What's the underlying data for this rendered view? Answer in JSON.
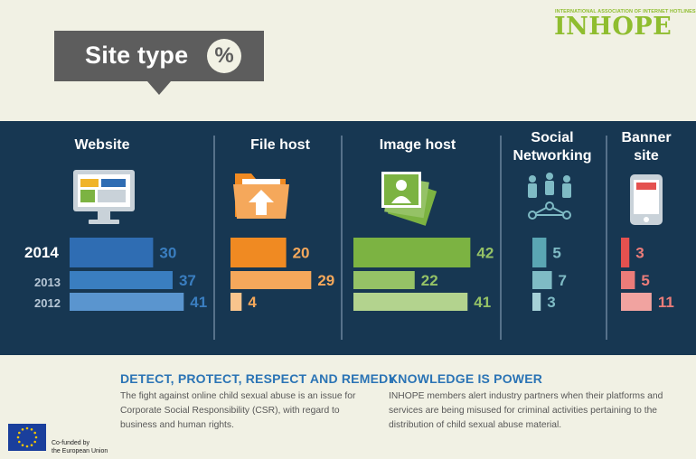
{
  "header": {
    "title": "Site type",
    "badge": "%",
    "logo_small": "INTERNATIONAL ASSOCIATION OF INTERNET HOTLINES",
    "logo": "INHOPE"
  },
  "chart_data": {
    "type": "bar",
    "orientation": "horizontal",
    "categories": [
      "Website",
      "File host",
      "Image host",
      "Social Networking",
      "Banner site"
    ],
    "years": [
      "2014",
      "2013",
      "2012"
    ],
    "series": [
      {
        "name": "2014",
        "values": [
          30,
          20,
          42,
          5,
          3
        ]
      },
      {
        "name": "2013",
        "values": [
          37,
          29,
          22,
          7,
          5
        ]
      },
      {
        "name": "2012",
        "values": [
          41,
          4,
          41,
          3,
          11
        ]
      }
    ],
    "colors": {
      "Website": [
        "#2f6db3",
        "#3a7ec0",
        "#5a95cf"
      ],
      "File host": [
        "#f08a22",
        "#f5a85b",
        "#f8c48d"
      ],
      "Image host": [
        "#7cb342",
        "#95c266",
        "#b3d38e"
      ],
      "Social Networking": [
        "#5aa6b3",
        "#7fbbc5",
        "#a5d0d7"
      ],
      "Banner site": [
        "#e4514f",
        "#eb7c79",
        "#f1a3a0"
      ]
    },
    "value_label_colors": [
      "#3a7ec0",
      "#f5a85b",
      "#95c266",
      "#7fbbc5",
      "#eb7c79"
    ]
  },
  "icons": [
    "monitor-icon",
    "folder-upload-icon",
    "photos-icon",
    "social-network-icon",
    "mobile-banner-icon"
  ],
  "footer": {
    "left_heading": "DETECT, PROTECT, RESPECT AND REMEDY",
    "left_text_lines": [
      "The fight against online child sexual abuse is an issue for",
      "Corporate Social Responsibility (CSR), with regard to",
      "business and human rights."
    ],
    "right_heading": "KNOWLEDGE IS POWER",
    "right_text_lines": [
      "INHOPE members alert industry partners when their platforms and",
      "services are being misused for criminal activities pertaining to the",
      "distribution of child sexual abuse material."
    ],
    "eu_line1": "Co-funded by",
    "eu_line2": "the European Union"
  }
}
